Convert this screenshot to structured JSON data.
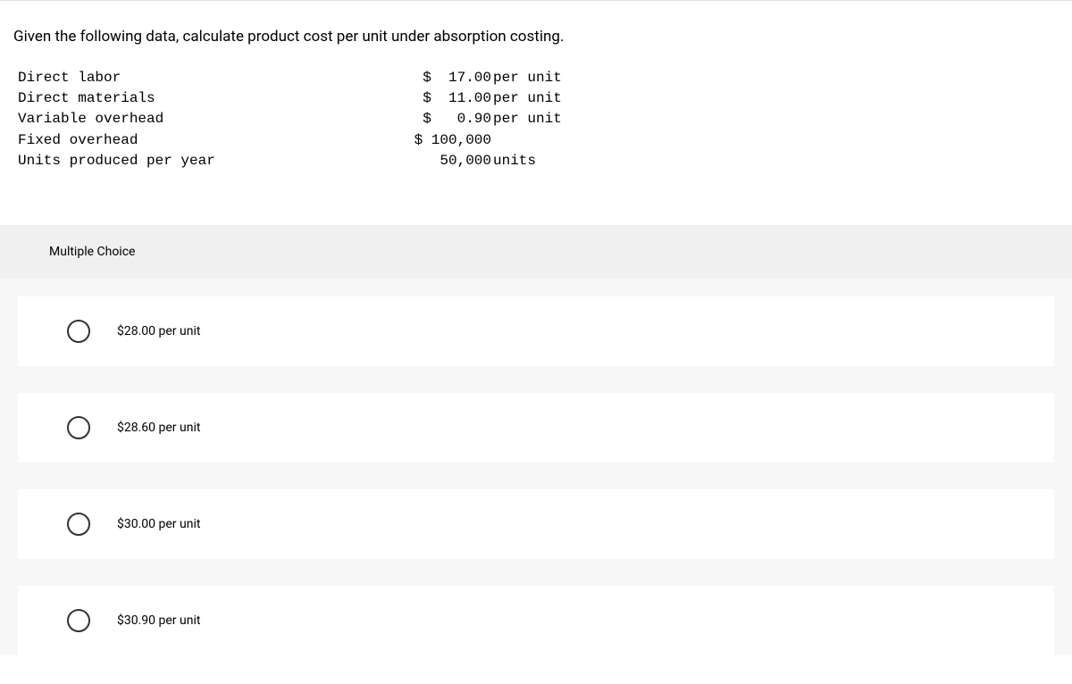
{
  "question": {
    "text": "Given the following data, calculate product cost per unit under absorption costing."
  },
  "data_table": {
    "rows": [
      {
        "label": "Direct labor",
        "value": "$  17.00",
        "unit": "per unit"
      },
      {
        "label": "Direct materials",
        "value": "$  11.00",
        "unit": "per unit"
      },
      {
        "label": "Variable overhead",
        "value": "$   0.90",
        "unit": "per unit"
      },
      {
        "label": "Fixed overhead",
        "value": "$ 100,000",
        "unit": ""
      },
      {
        "label": "Units produced per year",
        "value": "50,000",
        "unit": "units"
      }
    ]
  },
  "mc_header": "Multiple Choice",
  "options": [
    {
      "label": "$28.00 per unit"
    },
    {
      "label": "$28.60 per unit"
    },
    {
      "label": "$30.00 per unit"
    },
    {
      "label": "$30.90 per unit"
    }
  ],
  "colors": {
    "background": "#ffffff",
    "mc_header_bg": "#f0f0f0",
    "options_bg": "#f7f7f7",
    "radio_border": "#333333",
    "text": "#000000"
  }
}
